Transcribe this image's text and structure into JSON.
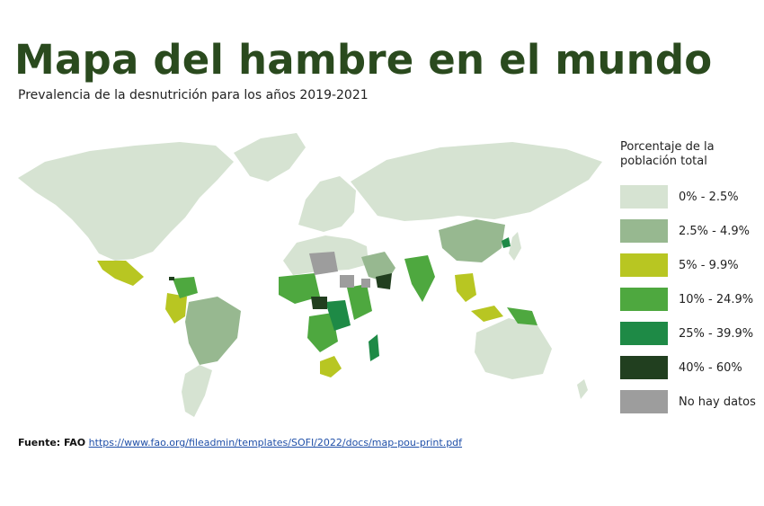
{
  "header": {
    "title": "Mapa del hambre en el mundo",
    "subtitle": "Prevalencia de la desnutrición para los años 2019-2021"
  },
  "legend": {
    "title_line1": "Porcentaje de la",
    "title_line2": "población total",
    "items": [
      {
        "label": "0% - 2.5%",
        "color": "#d6e3d2"
      },
      {
        "label": "2.5% - 4.9%",
        "color": "#97b890"
      },
      {
        "label": "5% - 9.9%",
        "color": "#b8c622"
      },
      {
        "label": "10% - 24.9%",
        "color": "#4ea83f"
      },
      {
        "label": "25% - 39.9%",
        "color": "#1e8a46"
      },
      {
        "label": "40% - 60%",
        "color": "#213f1f"
      },
      {
        "label": "No hay datos",
        "color": "#9d9d9d"
      }
    ]
  },
  "source": {
    "label": "Fuente: FAO",
    "url": "https://www.fao.org/fileadmin/templates/SOFI/2022/docs/map-pou-print.pdf"
  }
}
